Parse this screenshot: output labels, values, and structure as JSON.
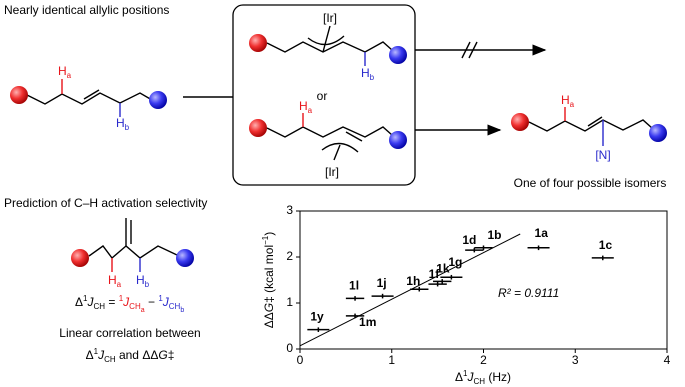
{
  "scheme": {
    "title": "Nearly identical allylic positions",
    "ir_top": "[Ir]",
    "or": "or",
    "ir_bottom": "[Ir]",
    "nitrogen": "[N]",
    "product_caption": "One of four possible isomers",
    "h_labels": [
      [
        "H",
        "a"
      ],
      [
        "H",
        "b"
      ],
      [
        "H",
        "b"
      ],
      [
        "H",
        "a"
      ],
      [
        "H",
        "a"
      ],
      [
        "H",
        "a"
      ],
      [
        "H",
        "b"
      ]
    ]
  },
  "prediction": {
    "title": "Prediction of C–H activation selectivity",
    "equation": [
      "Δ",
      "1",
      "J",
      "CH",
      " = ",
      "1",
      "J",
      "CH",
      "a",
      " − ",
      "1",
      "J",
      "CH",
      "b"
    ],
    "caption_line1": "Linear correlation between",
    "caption_line2": [
      "Δ",
      "1",
      "J",
      "CH",
      " and ΔΔ",
      "G",
      "‡"
    ]
  },
  "chart_data": {
    "type": "scatter",
    "x_label": [
      "Δ",
      "1",
      "J",
      "CH",
      " (Hz)"
    ],
    "y_label": [
      "ΔΔ",
      "G",
      "‡",
      " (kcal mol",
      "−1",
      ")"
    ],
    "annotation": "R² = 0.9111",
    "point_labels": [
      "1y",
      "1m",
      "1l",
      "1j",
      "1h",
      "1f",
      "1k",
      "1g",
      "1d",
      "1b",
      "1a",
      "1c"
    ],
    "x": [
      0.2,
      0.6,
      0.6,
      0.9,
      1.3,
      1.5,
      1.55,
      1.65,
      1.9,
      2.0,
      2.6,
      3.3
    ],
    "y": [
      0.42,
      0.72,
      1.1,
      1.15,
      1.3,
      1.41,
      1.47,
      1.56,
      2.15,
      2.2,
      2.2,
      1.98
    ],
    "x_errors": [
      0.12,
      0.1,
      0.1,
      0.12,
      0.1,
      0.1,
      0.1,
      0.12,
      0.1,
      0.1,
      0.12,
      0.12
    ],
    "y_errors": [
      0.05,
      0.05,
      0.05,
      0.05,
      0.05,
      0.05,
      0.05,
      0.05,
      0.05,
      0.05,
      0.05,
      0.05
    ],
    "fit": {
      "x": [
        0,
        2.4
      ],
      "y": [
        0.07,
        2.5
      ]
    },
    "color": "#000000",
    "xlim": [
      0,
      4
    ],
    "ylim": [
      0,
      3
    ],
    "xticks": [
      0,
      1,
      2,
      3,
      4
    ],
    "yticks": [
      0,
      1,
      2,
      3
    ]
  }
}
